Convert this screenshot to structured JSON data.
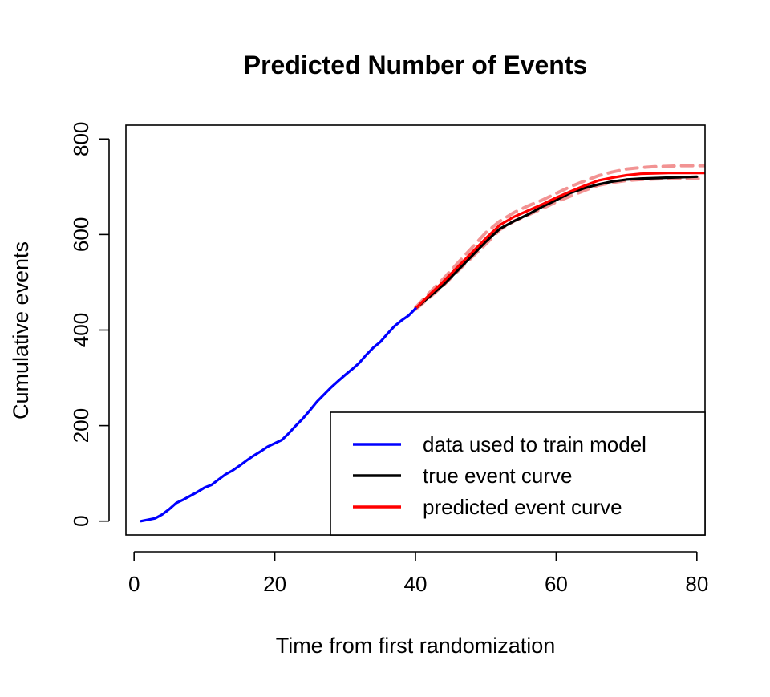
{
  "chart_data": {
    "type": "line",
    "title": "Predicted Number of Events",
    "xlabel": "Time from first randomization",
    "ylabel": "Cumulative events",
    "xlim": [
      -1.16,
      81.16
    ],
    "ylim": [
      -29,
      829
    ],
    "x_ticks": [
      0,
      20,
      40,
      60,
      80
    ],
    "y_ticks": [
      0,
      200,
      400,
      600,
      800
    ],
    "grid": false,
    "legend": {
      "position": "bottom-right",
      "entries": [
        {
          "label": "data used to train model",
          "color": "#0000ff"
        },
        {
          "label": "true event curve",
          "color": "#000000"
        },
        {
          "label": "predicted event curve",
          "color": "#ff0000"
        }
      ]
    },
    "series": [
      {
        "name": "data used to train model",
        "color": "#0000ff",
        "x": [
          1,
          2,
          3,
          4,
          5,
          6,
          7,
          8,
          9,
          10,
          11,
          12,
          13,
          14,
          15,
          16,
          17,
          18,
          19,
          20,
          21,
          22,
          23,
          24,
          25,
          26,
          27,
          28,
          29,
          30,
          31,
          32,
          33,
          34,
          35,
          36,
          37,
          38,
          39,
          40
        ],
        "y": [
          0,
          3,
          6,
          14,
          25,
          38,
          45,
          53,
          61,
          70,
          76,
          87,
          98,
          106,
          116,
          127,
          137,
          146,
          156,
          163,
          170,
          184,
          200,
          215,
          232,
          250,
          265,
          280,
          293,
          306,
          318,
          331,
          348,
          363,
          375,
          392,
          408,
          420,
          430,
          445
        ]
      },
      {
        "name": "true event curve",
        "color": "#000000",
        "x": [
          40,
          42,
          44,
          46,
          48,
          50,
          52,
          54,
          56,
          58,
          60,
          62,
          64,
          66,
          68,
          70,
          72,
          74,
          76,
          78,
          80
        ],
        "y": [
          445,
          470,
          495,
          525,
          555,
          585,
          612,
          628,
          642,
          658,
          672,
          687,
          697,
          705,
          711,
          715,
          717,
          718,
          719,
          720,
          721
        ]
      },
      {
        "name": "predicted event curve",
        "color": "#ff0000",
        "x": [
          40,
          42,
          44,
          46,
          48,
          50,
          52,
          54,
          56,
          58,
          60,
          62,
          64,
          66,
          68,
          70,
          72,
          74,
          76,
          78,
          80,
          81.16
        ],
        "y": [
          445,
          474,
          502,
          532,
          562,
          592,
          620,
          637,
          650,
          663,
          677,
          690,
          702,
          713,
          719,
          724,
          727,
          728,
          729,
          729,
          729,
          729
        ]
      },
      {
        "name": "",
        "color": "#f08080",
        "dashed": true,
        "x": [
          40,
          42,
          44,
          46,
          48,
          50,
          52,
          54,
          56,
          58,
          60,
          62,
          64,
          66,
          68,
          70,
          72,
          74,
          76,
          78,
          80,
          81.16
        ],
        "y": [
          447,
          478,
          508,
          540,
          572,
          604,
          628,
          646,
          660,
          672,
          686,
          700,
          712,
          723,
          731,
          737,
          740,
          742,
          743,
          744,
          744,
          744
        ]
      },
      {
        "name": "",
        "color": "#f08080",
        "dashed": true,
        "x": [
          40,
          42,
          44,
          46,
          48,
          50,
          52,
          54,
          56,
          58,
          60,
          62,
          64,
          66,
          68,
          70,
          72,
          74,
          76,
          78,
          80,
          81.16
        ],
        "y": [
          443,
          468,
          494,
          523,
          552,
          580,
          610,
          628,
          641,
          654,
          668,
          680,
          692,
          703,
          709,
          713,
          715,
          716,
          717,
          717,
          717,
          717
        ]
      }
    ]
  }
}
